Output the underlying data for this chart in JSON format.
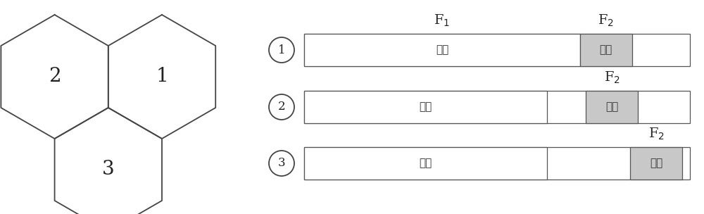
{
  "background_color": "#ffffff",
  "figsize": [
    10.0,
    3.04
  ],
  "dpi": 100,
  "hex_color": "#ffffff",
  "hex_edge_color": "#444444",
  "hex_lw": 1.3,
  "hex_label_fontsize": 20,
  "hex_label_color": "#222222",
  "circle_color": "#444444",
  "circle_lw": 1.3,
  "circle_label_fontsize": 12,
  "bar_edge_color": "#555555",
  "bar_lw": 0.9,
  "bar_white": "#ffffff",
  "bar_gray": "#c8c8c8",
  "bar_text_fontsize": 11,
  "bar_text_color": "#333333",
  "center_text": "中心",
  "edge_text": "边缘",
  "f_label_fontsize": 14,
  "f_label_color": "#222222",
  "outer_bar_lw": 0.9,
  "outer_bar_color": "#555555"
}
